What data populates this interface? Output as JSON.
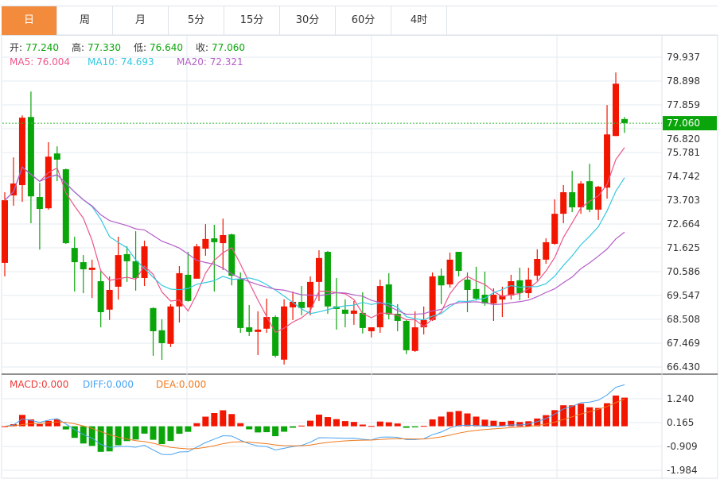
{
  "tabs": [
    {
      "label": "日",
      "active": true
    },
    {
      "label": "周"
    },
    {
      "label": "月"
    },
    {
      "label": "5分"
    },
    {
      "label": "15分"
    },
    {
      "label": "30分"
    },
    {
      "label": "60分"
    },
    {
      "label": "4时"
    }
  ],
  "ohlc_legend": {
    "open_label": "开:",
    "open": "77.240",
    "high_label": "高:",
    "high": "77.330",
    "low_label": "低:",
    "low": "76.640",
    "close_label": "收:",
    "close": "77.060"
  },
  "ma_legend": {
    "ma5": "MA5: 76.004",
    "ma10": "MA10: 74.693",
    "ma20": "MA20: 72.321"
  },
  "macd_legend": {
    "macd": "MACD:0.000",
    "diff": "DIFF:0.000",
    "dea": "DEA:0.000"
  },
  "price_axis": [
    "79.937",
    "78.898",
    "77.859",
    "76.820",
    "75.781",
    "74.742",
    "73.703",
    "72.664",
    "71.625",
    "70.586",
    "69.547",
    "68.508",
    "67.469",
    "66.430"
  ],
  "macd_axis": [
    "1.240",
    "0.165",
    "-0.909",
    "-1.984"
  ],
  "current_price": "77.060",
  "colors": {
    "up": "#f21500",
    "down": "#0aa50a",
    "ma5": "#ee5589",
    "ma10": "#35c8e0",
    "ma20": "#b45ec8",
    "diff": "#4aa3f0",
    "dea": "#f07a1e",
    "tab_active": "#f28c3c"
  },
  "chart_data": {
    "type": "candlestick",
    "ylim": [
      66.43,
      79.937
    ],
    "macd_ylim": [
      -1.984,
      1.24
    ],
    "candles": [
      [
        70.97,
        74.05,
        70.38,
        73.7
      ],
      [
        73.91,
        75.57,
        73.46,
        74.43
      ],
      [
        74.36,
        77.4,
        73.63,
        77.3
      ],
      [
        77.33,
        78.44,
        72.7,
        73.87
      ],
      [
        73.84,
        74.46,
        71.55,
        73.32
      ],
      [
        73.35,
        76.23,
        73.29,
        75.6
      ],
      [
        75.74,
        76.05,
        74.53,
        75.47
      ],
      [
        75.05,
        75.08,
        71.8,
        71.83
      ],
      [
        71.62,
        72.11,
        69.72,
        71.0
      ],
      [
        71.0,
        71.31,
        69.65,
        70.69
      ],
      [
        70.66,
        71.11,
        69.44,
        70.76
      ],
      [
        70.17,
        70.66,
        68.16,
        68.82
      ],
      [
        68.93,
        70.38,
        68.48,
        69.79
      ],
      [
        69.93,
        72.11,
        69.37,
        71.31
      ],
      [
        71.35,
        71.69,
        70.14,
        71.04
      ],
      [
        71.04,
        72.35,
        69.76,
        70.31
      ],
      [
        70.31,
        71.94,
        69.96,
        71.69
      ],
      [
        69.0,
        69.03,
        66.92,
        67.99
      ],
      [
        68.03,
        68.51,
        66.74,
        67.47
      ],
      [
        67.44,
        69.17,
        67.3,
        69.07
      ],
      [
        69.07,
        70.83,
        68.37,
        70.52
      ],
      [
        70.45,
        71.45,
        69.28,
        69.31
      ],
      [
        70.28,
        71.8,
        70.28,
        71.69
      ],
      [
        71.59,
        72.66,
        71.28,
        72.01
      ],
      [
        72.04,
        72.63,
        69.72,
        71.87
      ],
      [
        71.83,
        72.9,
        70.66,
        72.18
      ],
      [
        72.21,
        72.25,
        69.99,
        70.41
      ],
      [
        70.28,
        70.55,
        67.92,
        68.13
      ],
      [
        68.16,
        69.13,
        67.78,
        67.96
      ],
      [
        67.96,
        68.86,
        66.95,
        68.06
      ],
      [
        68.1,
        69.41,
        67.92,
        68.61
      ],
      [
        68.61,
        68.68,
        66.85,
        66.92
      ],
      [
        66.75,
        69.38,
        66.54,
        69.07
      ],
      [
        69.03,
        69.72,
        68.48,
        69.27
      ],
      [
        69.27,
        69.96,
        68.68,
        69.0
      ],
      [
        69.03,
        70.38,
        68.68,
        70.14
      ],
      [
        70.14,
        71.52,
        69.31,
        71.18
      ],
      [
        71.45,
        71.49,
        68.75,
        69.07
      ],
      [
        69.07,
        70.31,
        68.06,
        68.96
      ],
      [
        68.93,
        69.38,
        68.16,
        68.75
      ],
      [
        68.75,
        69.31,
        68.27,
        68.89
      ],
      [
        68.79,
        69.69,
        67.89,
        68.13
      ],
      [
        67.99,
        68.16,
        67.72,
        68.16
      ],
      [
        68.16,
        70.24,
        67.92,
        69.96
      ],
      [
        70.03,
        70.52,
        68.51,
        68.72
      ],
      [
        68.75,
        69.17,
        67.99,
        68.44
      ],
      [
        68.44,
        68.48,
        66.99,
        67.16
      ],
      [
        67.13,
        68.86,
        67.09,
        68.16
      ],
      [
        68.16,
        69.07,
        67.85,
        68.48
      ],
      [
        68.48,
        70.55,
        68.44,
        70.38
      ],
      [
        70.41,
        70.72,
        69.17,
        69.99
      ],
      [
        70.03,
        71.42,
        69.89,
        71.11
      ],
      [
        71.45,
        71.45,
        70.38,
        70.62
      ],
      [
        70.24,
        70.55,
        68.82,
        69.79
      ],
      [
        69.83,
        70.8,
        69.37,
        69.41
      ],
      [
        69.58,
        70.59,
        69.1,
        69.2
      ],
      [
        69.2,
        69.86,
        68.44,
        69.58
      ],
      [
        69.37,
        69.93,
        68.61,
        69.55
      ],
      [
        69.55,
        70.45,
        69.37,
        70.17
      ],
      [
        70.21,
        70.76,
        69.34,
        69.65
      ],
      [
        69.65,
        70.76,
        69.44,
        70.24
      ],
      [
        70.41,
        71.56,
        70.2,
        71.14
      ],
      [
        71.11,
        72.04,
        70.93,
        71.87
      ],
      [
        71.8,
        73.74,
        71.76,
        73.11
      ],
      [
        73.11,
        74.36,
        72.7,
        74.05
      ],
      [
        74.05,
        74.98,
        73.18,
        73.39
      ],
      [
        73.39,
        74.53,
        73.11,
        74.43
      ],
      [
        74.53,
        75.29,
        73.18,
        73.29
      ],
      [
        73.29,
        74.33,
        72.84,
        74.29
      ],
      [
        74.25,
        77.85,
        73.77,
        76.57
      ],
      [
        76.5,
        79.27,
        76.5,
        78.78
      ],
      [
        77.24,
        77.33,
        76.64,
        77.06
      ]
    ]
  }
}
